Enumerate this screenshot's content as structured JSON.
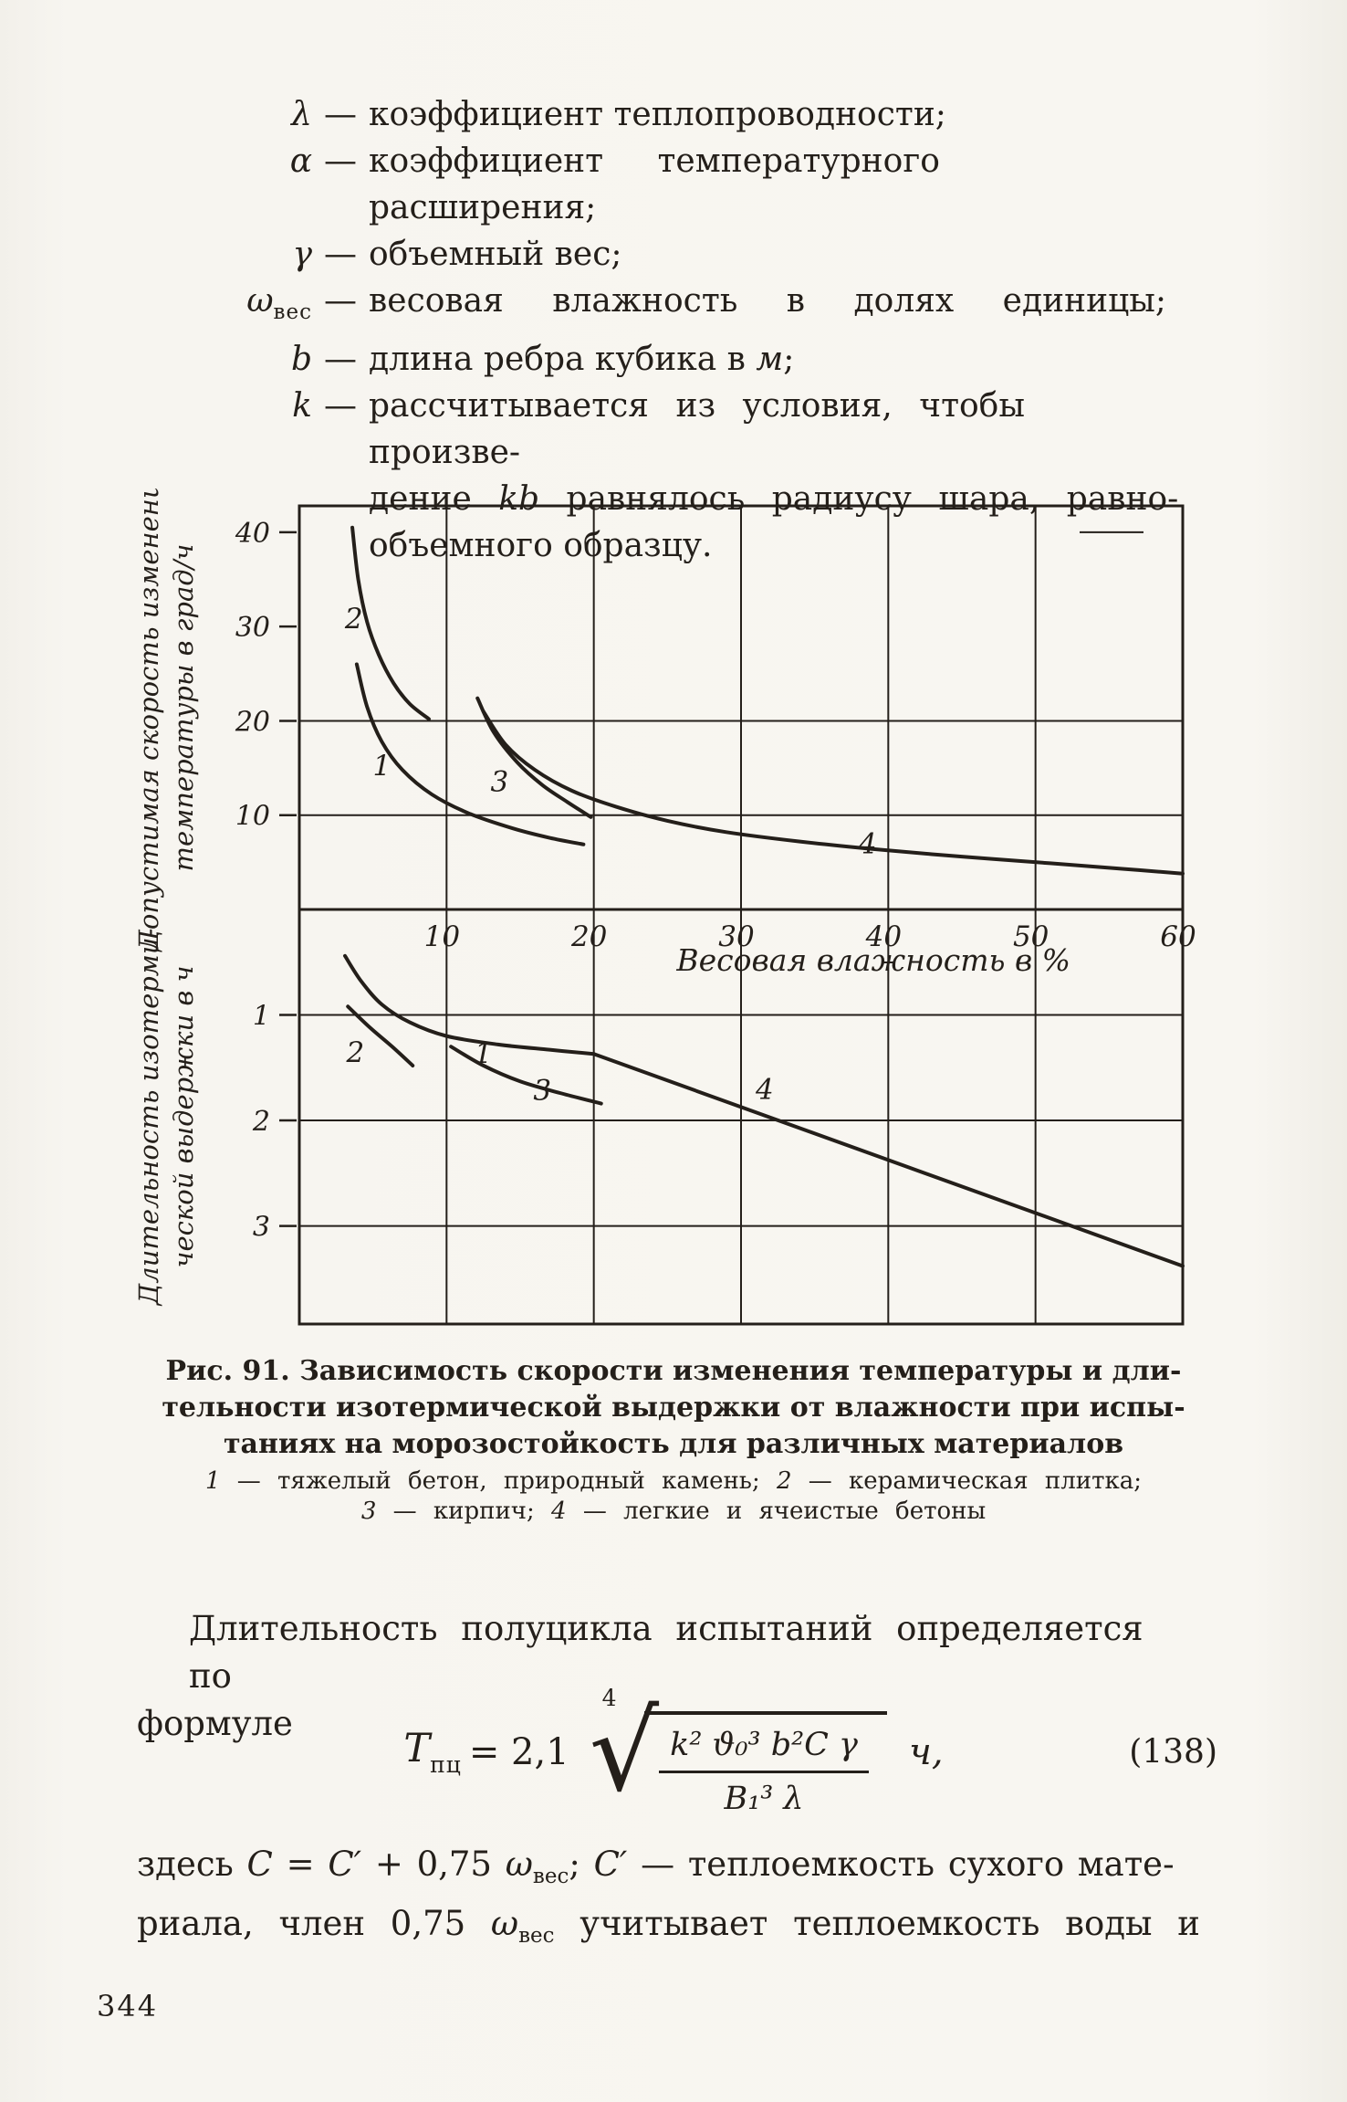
{
  "page": {
    "number": "344",
    "ink": "#241f1a",
    "paper": "#f7f5f0"
  },
  "defs": {
    "r1": {
      "sym": "λ",
      "dash": "—",
      "text": "коэффициент теплопроводности;"
    },
    "r2": {
      "sym": "α",
      "dash": "—",
      "text": "коэффициент температурного расширения;"
    },
    "r3": {
      "sym": "γ",
      "dash": "—",
      "text": "объемный вес;"
    },
    "r4": {
      "sym": "ω",
      "sub": "вес",
      "dash": "—",
      "text": "весовая влажность в долях единицы;"
    },
    "r5": {
      "sym": "b",
      "dash": "—",
      "pre": "длина ребра кубика в ",
      "it": "м",
      "post": ";"
    },
    "r6": {
      "sym": "k",
      "dash": "—",
      "l1": "рассчитывается из условия, чтобы произве-",
      "l2pre": "дение ",
      "l2it": "kb",
      "l2post": " равнялось радиусу шара, равно-",
      "l3": "объемного образцу."
    }
  },
  "chart_data": [
    {
      "type": "line",
      "panel": "top",
      "title": "Рис. 91 (верхняя панель)",
      "xlabel": "Весовая влажность в %",
      "ylabel": "Допустимая скорость изменения температуры в град/ч",
      "ylabel_lines": [
        "Допустимая скорость изменения",
        "температуры в град/ч"
      ],
      "xlim": [
        0,
        60
      ],
      "ylim": [
        0,
        42.8
      ],
      "xticks": [
        10,
        20,
        30,
        40,
        50,
        60
      ],
      "yticks": [
        40,
        30,
        20,
        10
      ],
      "grid_horizontal": [
        10,
        20
      ],
      "legend_position": "none",
      "series": [
        {
          "name": "2",
          "points": [
            [
              3.6,
              40.5
            ],
            [
              4.0,
              35.0
            ],
            [
              4.6,
              30.5
            ],
            [
              5.4,
              27.0
            ],
            [
              6.4,
              24.0
            ],
            [
              7.5,
              21.8
            ],
            [
              8.8,
              20.2
            ]
          ]
        },
        {
          "name": "1",
          "points": [
            [
              3.9,
              26.0
            ],
            [
              4.6,
              21.5
            ],
            [
              5.6,
              17.8
            ],
            [
              7.0,
              14.8
            ],
            [
              9.0,
              12.2
            ],
            [
              11.5,
              10.2
            ],
            [
              14.5,
              8.6
            ],
            [
              17.0,
              7.6
            ],
            [
              19.3,
              6.9
            ]
          ]
        },
        {
          "name": "3",
          "points": [
            [
              12.1,
              22.4
            ],
            [
              13.2,
              18.8
            ],
            [
              14.8,
              15.6
            ],
            [
              16.5,
              13.2
            ],
            [
              18.2,
              11.4
            ],
            [
              19.8,
              9.8
            ]
          ]
        },
        {
          "name": "4",
          "points": [
            [
              12.5,
              21.0
            ],
            [
              14.0,
              17.5
            ],
            [
              16.0,
              14.8
            ],
            [
              18.5,
              12.6
            ],
            [
              21.5,
              10.9
            ],
            [
              25.0,
              9.4
            ],
            [
              29.0,
              8.2
            ],
            [
              34.0,
              7.2
            ],
            [
              39.0,
              6.4
            ],
            [
              45.0,
              5.6
            ],
            [
              51.0,
              4.9
            ],
            [
              56.0,
              4.3
            ],
            [
              60.0,
              3.8
            ]
          ]
        }
      ],
      "labels": [
        {
          "text": "2",
          "x": 3.7,
          "y": 30.9
        },
        {
          "text": "1",
          "x": 5.6,
          "y": 15.3
        },
        {
          "text": "3",
          "x": 13.6,
          "y": 13.6
        },
        {
          "text": "4",
          "x": 38.6,
          "y": 7.0
        }
      ]
    },
    {
      "type": "line",
      "panel": "bottom",
      "title": "Рис. 91 (нижняя панель)",
      "xlabel": "Весовая влажность в %",
      "ylabel": "Длительность изотермической выдержки в ч",
      "ylabel_lines": [
        "Длительность изотерми-",
        "ческой выдержки в ч"
      ],
      "xlim": [
        0,
        60
      ],
      "ylim": [
        0,
        3.93
      ],
      "y_inverted": true,
      "xticks": [
        10,
        20,
        30,
        40,
        50,
        60
      ],
      "yticks": [
        1,
        2,
        3
      ],
      "legend_position": "none",
      "series": [
        {
          "name": "2",
          "points": [
            [
              3.3,
              0.92
            ],
            [
              4.8,
              1.12
            ],
            [
              6.3,
              1.3
            ],
            [
              7.7,
              1.48
            ]
          ]
        },
        {
          "name": "1",
          "points": [
            [
              3.1,
              0.44
            ],
            [
              4.2,
              0.68
            ],
            [
              5.6,
              0.9
            ],
            [
              7.5,
              1.07
            ],
            [
              10.0,
              1.2
            ],
            [
              13.5,
              1.28
            ],
            [
              17.0,
              1.33
            ],
            [
              20.0,
              1.37
            ]
          ]
        },
        {
          "name": "3",
          "points": [
            [
              10.3,
              1.3
            ],
            [
              12.5,
              1.48
            ],
            [
              15.0,
              1.63
            ],
            [
              17.7,
              1.74
            ],
            [
              20.5,
              1.84
            ]
          ]
        },
        {
          "name": "4",
          "points": [
            [
              20.0,
              1.37
            ],
            [
              60.0,
              3.38
            ]
          ]
        }
      ],
      "labels": [
        {
          "text": "2",
          "x": 3.8,
          "y": 1.35
        },
        {
          "text": "1",
          "x": 12.5,
          "y": 1.36
        },
        {
          "text": "3",
          "x": 16.5,
          "y": 1.71
        },
        {
          "text": "4",
          "x": 31.6,
          "y": 1.7
        }
      ],
      "series_legend": {
        "1": "тяжелый бетон, природный камень",
        "2": "керамическая плитка",
        "3": "кирпич",
        "4": "легкие и ячеистые бетоны"
      }
    }
  ],
  "caption": {
    "l1": "Рис. 91. Зависимость скорости изменения температуры и дли-",
    "l2": "тельности изотермической выдержки от влажности при испы-",
    "l3": "таниях на морозостойкость для различных материалов"
  },
  "legend": {
    "n1": "1",
    "t1": " — тяжелый бетон, природный камень; ",
    "n2": "2",
    "t2": " — керамическая плитка;",
    "n3": "3",
    "t3": " — кирпич; ",
    "n4": "4",
    "t4": " — легкие и ячеистые бетоны"
  },
  "para1": {
    "l1": "Длительность полуцикла испытаний определяется по",
    "l2": "формуле"
  },
  "formula": {
    "var": "T",
    "var_sub": "пц",
    "rel": "= 2,1",
    "root_index": "4",
    "numerator": "k² ϑ₀³ b²C γ",
    "denominator": "B₁³ λ",
    "unit": "ч,",
    "number": "(138)"
  },
  "para2": {
    "s1": "здесь ",
    "s2": "C",
    "s3": " = ",
    "s4": "C′",
    "s5": " + 0,75 ",
    "s6": "ω",
    "s6sub": "вес",
    "s7": ";  ",
    "s8": "C′",
    "s9": " — теплоемкость сухого мате-",
    "l2s1": "риала, член 0,75 ",
    "l2s2": "ω",
    "l2s2sub": "вес",
    "l2s3": " учитывает теплоемкость воды и"
  }
}
